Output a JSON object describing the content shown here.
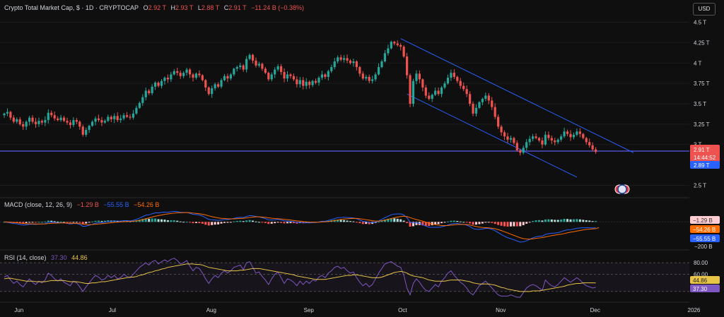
{
  "header": {
    "symbol": "Crypto Total Market Cap, $ · 1D · CRYPTOCAP",
    "o_label": "O",
    "o_value": "2.92 T",
    "h_label": "H",
    "h_value": "2.93 T",
    "l_label": "L",
    "l_value": "2.88 T",
    "c_label": "C",
    "c_value": "2.91 T",
    "change": "−11.24 B (−0.38%)",
    "currency_button": "USD"
  },
  "macd_legend": {
    "name": "MACD (close, 12, 26, 9)",
    "v1": "−1.29 B",
    "v2": "−55.55 B",
    "v3": "−54.26 B"
  },
  "rsi_legend": {
    "name": "RSI (14, close)",
    "v1": "37.30",
    "v2": "44.86"
  },
  "colors": {
    "up": "#26a69a",
    "down": "#ef5350",
    "channel": "#2962ff",
    "support": "#5b5be8",
    "macd": "#2962ff",
    "signal": "#ff6d00",
    "rsi": "#7e57c2",
    "rsi_ma": "#e8c547"
  },
  "price_badges": {
    "last": "2.91 T",
    "countdown": "14:44:52",
    "prev": "2.89 T"
  },
  "macd_badges": {
    "hist": "−1.29 B",
    "signal": "−54.26 B",
    "macd": "−55.55 B",
    "level": "−200 B"
  },
  "rsi_badges": {
    "ma": "44.86",
    "rsi": "37.30",
    "l80": "80.00",
    "l60": "60.00"
  },
  "chart_data": [
    {
      "type": "candlestick",
      "title": "Crypto Total Market Cap",
      "y_unit": "T USD",
      "y_ticks": [
        "4.5 T",
        "4.25 T",
        "4 T",
        "3.75 T",
        "3.5 T",
        "3.25 T",
        "3 T",
        "2.5 T"
      ],
      "y_tick_values": [
        4.5,
        4.25,
        4,
        3.75,
        3.5,
        3.25,
        3,
        2.5
      ],
      "ylim": [
        2.4,
        4.6
      ],
      "x_labels": [
        "Jun",
        "Jul",
        "Aug",
        "Sep",
        "Oct",
        "Nov",
        "Dec",
        "2026"
      ],
      "x_label_index": [
        5,
        35,
        66,
        97,
        127,
        158,
        188,
        219
      ],
      "close": [
        3.38,
        3.4,
        3.33,
        3.28,
        3.31,
        3.25,
        3.22,
        3.28,
        3.33,
        3.28,
        3.25,
        3.29,
        3.27,
        3.3,
        3.39,
        3.36,
        3.32,
        3.3,
        3.33,
        3.29,
        3.27,
        3.24,
        3.3,
        3.28,
        3.22,
        3.12,
        3.18,
        3.23,
        3.28,
        3.32,
        3.3,
        3.27,
        3.29,
        3.34,
        3.31,
        3.35,
        3.3,
        3.32,
        3.36,
        3.34,
        3.33,
        3.38,
        3.45,
        3.51,
        3.58,
        3.66,
        3.63,
        3.71,
        3.76,
        3.72,
        3.78,
        3.82,
        3.8,
        3.86,
        3.9,
        3.88,
        3.84,
        3.88,
        3.92,
        3.86,
        3.82,
        3.87,
        3.85,
        3.79,
        3.7,
        3.62,
        3.69,
        3.74,
        3.71,
        3.79,
        3.84,
        3.81,
        3.86,
        3.93,
        3.95,
        3.97,
        3.92,
        4.05,
        4.1,
        4.03,
        3.97,
        3.99,
        3.93,
        3.88,
        3.8,
        3.86,
        3.92,
        3.96,
        3.89,
        3.81,
        3.86,
        3.84,
        3.8,
        3.74,
        3.79,
        3.72,
        3.77,
        3.73,
        3.78,
        3.76,
        3.82,
        3.86,
        3.83,
        3.9,
        3.95,
        4.02,
        4.07,
        4.04,
        4.06,
        4.03,
        4.0,
        4.02,
        3.95,
        3.87,
        3.81,
        3.83,
        3.78,
        3.8,
        3.86,
        3.95,
        4.02,
        4.12,
        4.18,
        4.26,
        4.24,
        4.22,
        4.2,
        4.08,
        3.85,
        3.5,
        3.78,
        3.87,
        3.8,
        3.7,
        3.6,
        3.56,
        3.61,
        3.66,
        3.62,
        3.7,
        3.75,
        3.82,
        3.88,
        3.83,
        3.78,
        3.72,
        3.68,
        3.62,
        3.5,
        3.38,
        3.45,
        3.52,
        3.56,
        3.6,
        3.54,
        3.46,
        3.34,
        3.22,
        3.15,
        3.1,
        3.06,
        3.08,
        3.02,
        2.93,
        2.9,
        2.96,
        3.03,
        3.07,
        3.1,
        3.08,
        3.05,
        3.0,
        3.12,
        3.08,
        3.05,
        3.03,
        3.06,
        3.1,
        3.16,
        3.13,
        3.09,
        3.12,
        3.16,
        3.13,
        3.08,
        3.03,
        2.99,
        2.94,
        2.91
      ],
      "support_level": 2.92
    },
    {
      "type": "line",
      "title": "MACD (close, 12, 26, 9)",
      "y_unit": "B USD",
      "ylim": [
        -240,
        150
      ],
      "series": [
        {
          "name": "MACD",
          "values": [
            0,
            -4,
            -10,
            -16,
            -18,
            -24,
            -30,
            -28,
            -22,
            -22,
            -24,
            -20,
            -20,
            -16,
            -4,
            -2,
            -4,
            -8,
            -6,
            -10,
            -14,
            -20,
            -16,
            -16,
            -24,
            -42,
            -40,
            -32,
            -22,
            -12,
            -8,
            -8,
            -4,
            4,
            4,
            10,
            8,
            8,
            12,
            12,
            10,
            14,
            24,
            36,
            50,
            64,
            68,
            78,
            86,
            86,
            90,
            94,
            92,
            96,
            100,
            98,
            92,
            90,
            90,
            82,
            72,
            70,
            66,
            56,
            40,
            24,
            20,
            18,
            14,
            18,
            22,
            22,
            26,
            34,
            40,
            44,
            42,
            52,
            60,
            58,
            52,
            48,
            40,
            32,
            20,
            18,
            20,
            24,
            18,
            10,
            8,
            6,
            2,
            -6,
            -4,
            -10,
            -8,
            -10,
            -6,
            -6,
            0,
            6,
            6,
            14,
            22,
            32,
            40,
            42,
            44,
            42,
            40,
            38,
            30,
            18,
            6,
            2,
            -6,
            -8,
            -2,
            10,
            24,
            40,
            54,
            68,
            74,
            76,
            76,
            66,
            40,
            -4,
            -10,
            -8,
            -14,
            -26,
            -40,
            -50,
            -52,
            -50,
            -52,
            -46,
            -40,
            -30,
            -20,
            -16,
            -16,
            -20,
            -24,
            -30,
            -44,
            -64,
            -70,
            -70,
            -68,
            -62,
            -62,
            -70,
            -84,
            -102,
            -120,
            -136,
            -150,
            -160,
            -170,
            -182,
            -192,
            -190,
            -180,
            -166,
            -152,
            -142,
            -136,
            -136,
            -120,
            -112,
            -108,
            -106,
            -102,
            -94,
            -82,
            -76,
            -74,
            -68,
            -60,
            -58,
            -56,
            -56,
            -56,
            -58,
            -56
          ]
        },
        {
          "name": "Signal",
          "values": [
            0,
            -1,
            -3,
            -6,
            -8,
            -11,
            -15,
            -17,
            -18,
            -19,
            -20,
            -20,
            -20,
            -19,
            -16,
            -13,
            -11,
            -11,
            -10,
            -10,
            -11,
            -13,
            -13,
            -14,
            -16,
            -21,
            -25,
            -26,
            -25,
            -22,
            -20,
            -17,
            -15,
            -11,
            -8,
            -4,
            -2,
            0,
            2,
            4,
            5,
            7,
            10,
            15,
            22,
            30,
            38,
            46,
            54,
            60,
            66,
            72,
            76,
            80,
            84,
            87,
            88,
            89,
            89,
            88,
            84,
            81,
            78,
            73,
            67,
            58,
            50,
            44,
            38,
            34,
            32,
            30,
            29,
            29,
            31,
            33,
            34,
            38,
            42,
            46,
            48,
            48,
            46,
            43,
            39,
            35,
            32,
            30,
            28,
            24,
            21,
            18,
            14,
            10,
            7,
            3,
            0,
            -2,
            -3,
            -3,
            -2,
            0,
            1,
            4,
            7,
            12,
            18,
            23,
            27,
            30,
            32,
            33,
            33,
            30,
            26,
            21,
            16,
            11,
            8,
            8,
            11,
            17,
            24,
            32,
            40,
            46,
            51,
            54,
            51,
            41,
            31,
            22,
            15,
            7,
            -3,
            -12,
            -20,
            -26,
            -31,
            -34,
            -35,
            -34,
            -31,
            -28,
            -25,
            -24,
            -24,
            -25,
            -29,
            -37,
            -44,
            -49,
            -53,
            -55,
            -57,
            -60,
            -65,
            -73,
            -83,
            -94,
            -105,
            -117,
            -128,
            -140,
            -151,
            -159,
            -163,
            -164,
            -161,
            -157,
            -153,
            -149,
            -143,
            -137,
            -131,
            -126,
            -121,
            -117,
            -111,
            -104,
            -98,
            -93,
            -87,
            -82,
            -76,
            -72,
            -69,
            -66,
            -64,
            -54
          ]
        }
      ]
    },
    {
      "type": "line",
      "title": "RSI (14, close)",
      "ylim": [
        15,
        95
      ],
      "levels": [
        80,
        60,
        30
      ],
      "series": [
        {
          "name": "RSI",
          "values": [
            55,
            58,
            50,
            44,
            48,
            42,
            38,
            45,
            52,
            46,
            42,
            48,
            45,
            50,
            62,
            58,
            52,
            48,
            52,
            46,
            43,
            40,
            48,
            45,
            38,
            30,
            38,
            45,
            52,
            58,
            55,
            50,
            52,
            58,
            54,
            58,
            52,
            54,
            60,
            56,
            54,
            60,
            66,
            72,
            76,
            80,
            76,
            82,
            84,
            78,
            82,
            85,
            82,
            86,
            88,
            84,
            78,
            80,
            84,
            74,
            66,
            72,
            70,
            62,
            52,
            44,
            52,
            58,
            54,
            62,
            66,
            62,
            66,
            72,
            74,
            76,
            68,
            80,
            82,
            72,
            62,
            64,
            56,
            50,
            42,
            52,
            60,
            64,
            54,
            44,
            52,
            50,
            46,
            40,
            48,
            42,
            48,
            44,
            50,
            48,
            55,
            58,
            54,
            62,
            66,
            72,
            74,
            70,
            72,
            66,
            62,
            64,
            54,
            46,
            40,
            44,
            38,
            42,
            52,
            62,
            70,
            78,
            80,
            82,
            78,
            74,
            72,
            58,
            36,
            24,
            44,
            52,
            46,
            38,
            32,
            30,
            36,
            42,
            38,
            48,
            54,
            62,
            66,
            58,
            52,
            46,
            42,
            36,
            28,
            24,
            32,
            40,
            44,
            48,
            42,
            36,
            30,
            24,
            22,
            22,
            22,
            24,
            22,
            20,
            20,
            28,
            36,
            40,
            42,
            40,
            36,
            32,
            50,
            44,
            40,
            38,
            42,
            48,
            54,
            50,
            46,
            50,
            54,
            50,
            44,
            40,
            38,
            36,
            37.3
          ]
        },
        {
          "name": "RSI MA",
          "values": [
            52,
            53,
            53,
            52,
            51,
            50,
            49,
            48,
            48,
            48,
            47,
            47,
            47,
            47,
            48,
            49,
            49,
            49,
            49,
            49,
            48,
            47,
            47,
            47,
            46,
            45,
            44,
            44,
            45,
            45,
            46,
            47,
            47,
            48,
            49,
            50,
            51,
            52,
            53,
            54,
            55,
            55,
            56,
            58,
            59,
            61,
            63,
            64,
            66,
            67,
            69,
            70,
            72,
            73,
            74,
            75,
            76,
            77,
            78,
            78,
            78,
            77,
            77,
            76,
            74,
            72,
            71,
            70,
            69,
            68,
            67,
            66,
            66,
            66,
            66,
            67,
            67,
            68,
            69,
            70,
            70,
            70,
            69,
            68,
            67,
            66,
            65,
            64,
            63,
            62,
            61,
            60,
            59,
            57,
            56,
            55,
            54,
            53,
            52,
            51,
            51,
            51,
            51,
            52,
            53,
            54,
            55,
            56,
            57,
            58,
            58,
            59,
            59,
            58,
            57,
            56,
            55,
            54,
            54,
            54,
            55,
            57,
            59,
            61,
            63,
            64,
            65,
            64,
            62,
            59,
            57,
            56,
            55,
            54,
            52,
            50,
            49,
            48,
            48,
            48,
            48,
            49,
            50,
            50,
            50,
            50,
            49,
            48,
            47,
            45,
            44,
            43,
            43,
            43,
            43,
            42,
            41,
            39,
            37,
            36,
            34,
            33,
            32,
            31,
            30,
            30,
            30,
            30,
            31,
            31,
            31,
            32,
            33,
            34,
            35,
            36,
            37,
            38,
            39,
            41,
            42,
            43,
            44,
            44,
            45,
            45,
            45,
            45,
            44.86
          ]
        }
      ]
    }
  ]
}
